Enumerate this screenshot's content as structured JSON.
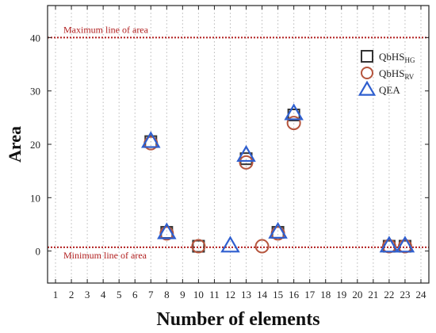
{
  "chart_data": {
    "type": "scatter",
    "title": "",
    "xlabel": "Number of elements",
    "ylabel": "Area",
    "xlim": [
      0.5,
      24.5
    ],
    "ylim": [
      -6,
      46
    ],
    "x_ticks": [
      1,
      2,
      3,
      4,
      5,
      6,
      7,
      8,
      9,
      10,
      11,
      12,
      13,
      14,
      15,
      16,
      17,
      18,
      19,
      20,
      21,
      22,
      23,
      24
    ],
    "y_ticks": [
      0,
      10,
      20,
      30,
      40
    ],
    "grid": "vertical-dotted",
    "legend_position": "top-right",
    "reference_lines": [
      {
        "label": "Maximum line of area",
        "y": 40,
        "color": "#b11e1e"
      },
      {
        "label": "Minimum line of area",
        "y": 0.7,
        "color": "#b11e1e"
      }
    ],
    "series": [
      {
        "name": "QbHS",
        "subscript": "HG",
        "marker": "square",
        "color": "#333333",
        "points": [
          [
            7,
            20.5
          ],
          [
            8,
            3.5
          ],
          [
            10,
            0.9
          ],
          [
            13,
            17.3
          ],
          [
            15,
            3.5
          ],
          [
            16,
            25.5
          ],
          [
            22,
            0.9
          ],
          [
            23,
            0.9
          ]
        ]
      },
      {
        "name": "QbHS",
        "subscript": "RV",
        "marker": "circle",
        "color": "#b5553d",
        "points": [
          [
            7,
            20.2
          ],
          [
            8,
            3.3
          ],
          [
            10,
            0.9
          ],
          [
            13,
            16.6
          ],
          [
            14,
            0.9
          ],
          [
            15,
            3.3
          ],
          [
            16,
            24.0
          ],
          [
            22,
            0.9
          ],
          [
            23,
            0.9
          ]
        ]
      },
      {
        "name": "QEA",
        "subscript": "",
        "marker": "triangle",
        "color": "#2f5fcf",
        "points": [
          [
            7,
            20.6
          ],
          [
            8,
            3.5
          ],
          [
            12,
            1.0
          ],
          [
            13,
            18.0
          ],
          [
            15,
            3.6
          ],
          [
            16,
            25.8
          ],
          [
            22,
            1.0
          ],
          [
            23,
            1.0
          ]
        ]
      }
    ]
  }
}
